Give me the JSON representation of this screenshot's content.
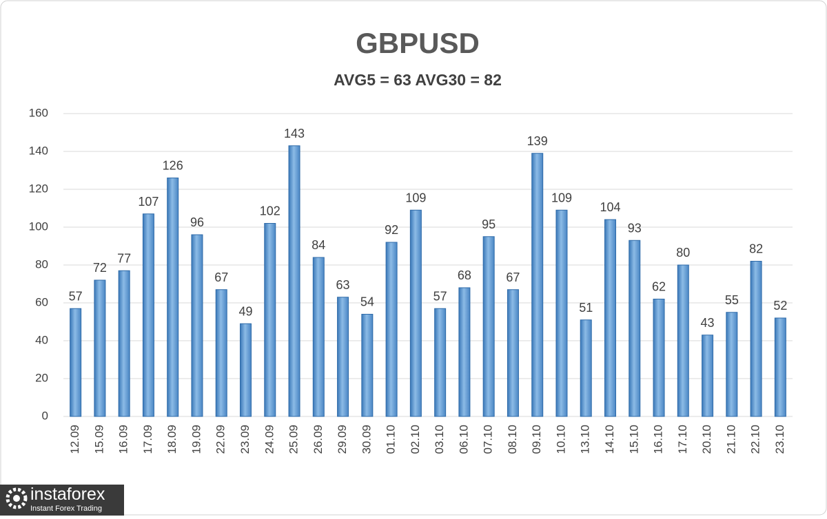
{
  "chart_data": {
    "type": "bar",
    "title": "GBPUSD",
    "subtitle": "AVG5 = 63 AVG30 = 82",
    "categories": [
      "12.09",
      "15.09",
      "16.09",
      "17.09",
      "18.09",
      "19.09",
      "22.09",
      "23.09",
      "24.09",
      "25.09",
      "26.09",
      "29.09",
      "30.09",
      "01.10",
      "02.10",
      "03.10",
      "06.10",
      "07.10",
      "08.10",
      "09.10",
      "10.10",
      "13.10",
      "14.10",
      "15.10",
      "16.10",
      "17.10",
      "20.10",
      "21.10",
      "22.10",
      "23.10"
    ],
    "values": [
      57,
      72,
      77,
      107,
      126,
      96,
      67,
      49,
      102,
      143,
      84,
      63,
      54,
      92,
      109,
      57,
      68,
      95,
      67,
      139,
      109,
      51,
      104,
      93,
      62,
      80,
      43,
      55,
      82,
      52
    ],
    "color": "#5b9bd5",
    "ylim": [
      0,
      160
    ],
    "yticks": [
      0,
      20,
      40,
      60,
      80,
      100,
      120,
      140,
      160
    ],
    "grid": true
  },
  "watermark": {
    "name": "instaforex",
    "tagline": "Instant Forex Trading"
  }
}
